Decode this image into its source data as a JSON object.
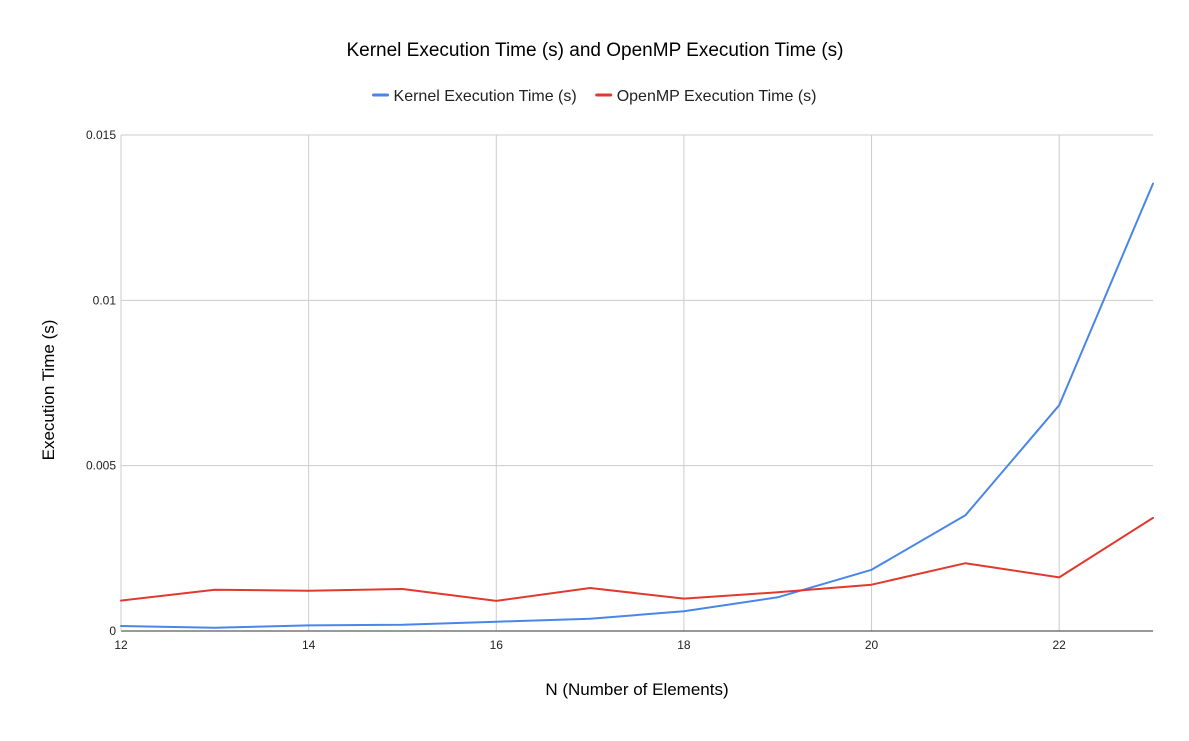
{
  "chart_data": {
    "type": "line",
    "title": "Kernel Execution Time (s) and OpenMP Execution Time (s)",
    "xlabel": "N (Number of Elements)",
    "ylabel": "Execution Time (s)",
    "x": [
      12,
      13,
      14,
      15,
      16,
      17,
      18,
      19,
      20,
      21,
      22,
      23
    ],
    "xlim": [
      12,
      23
    ],
    "ylim": [
      0,
      0.015
    ],
    "x_ticks": [
      12,
      14,
      16,
      18,
      20,
      22
    ],
    "y_ticks": [
      0,
      0.005,
      0.01,
      0.015
    ],
    "x_tick_labels": [
      "12",
      "14",
      "16",
      "18",
      "20",
      "22"
    ],
    "y_tick_labels": [
      "0",
      "0.005",
      "0.01",
      "0.015"
    ],
    "grid": true,
    "legend_position": "top",
    "series": [
      {
        "name": "Kernel Execution Time (s)",
        "color": "#4a86e8",
        "values": [
          0.00015,
          0.0001,
          0.00017,
          0.00019,
          0.00028,
          0.00037,
          0.0006,
          0.00102,
          0.00185,
          0.0035,
          0.00683,
          0.01353
        ]
      },
      {
        "name": "OpenMP Execution Time (s)",
        "color": "#e0392d",
        "values": [
          0.00092,
          0.00125,
          0.00122,
          0.00127,
          0.00091,
          0.0013,
          0.00098,
          0.00117,
          0.0014,
          0.00205,
          0.00162,
          0.00342
        ]
      }
    ]
  }
}
